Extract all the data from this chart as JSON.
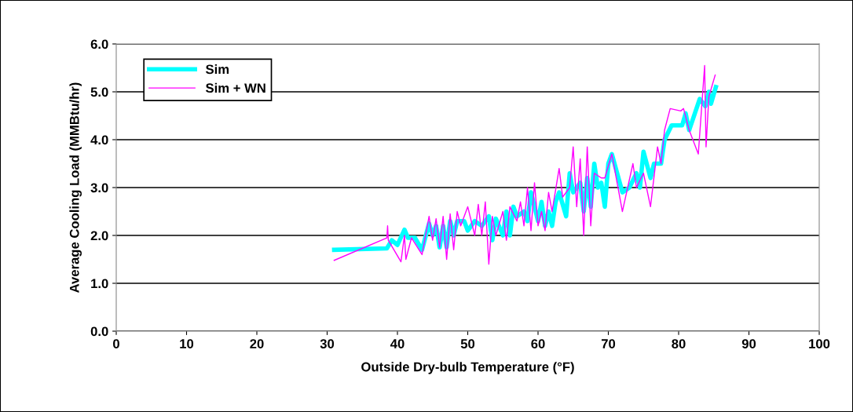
{
  "chart_data": {
    "type": "line",
    "xlabel": "Outside Dry-bulb Temperature (°F)",
    "ylabel": "Average Cooling Load (MMBtu/hr)",
    "xlim": [
      0,
      100
    ],
    "xticks": [
      0,
      10,
      20,
      30,
      40,
      50,
      60,
      70,
      80,
      90,
      100
    ],
    "ylim": [
      0,
      6
    ],
    "yticks": [
      {
        "value": 0,
        "label": "0.0"
      },
      {
        "value": 1,
        "label": "1.0"
      },
      {
        "value": 2,
        "label": "2.0"
      },
      {
        "value": 3,
        "label": "3.0"
      },
      {
        "value": 4,
        "label": "4.0"
      },
      {
        "value": 5,
        "label": "5.0"
      },
      {
        "value": 6,
        "label": "6.0"
      }
    ],
    "grid": "y",
    "legend": "top left",
    "marker": "none",
    "line_style": "solid",
    "series": [
      {
        "name": "Sim",
        "color": "#00ffff",
        "x": [
          31,
          38.5,
          39.2,
          40,
          41,
          41.5,
          42.5,
          43.5,
          44.5,
          45,
          45.5,
          46,
          46.5,
          47,
          47.5,
          48,
          48.5,
          49.5,
          50,
          51,
          52,
          53,
          53.5,
          54,
          55,
          55.5,
          56,
          56.5,
          57,
          58,
          58.5,
          59,
          60,
          60.5,
          61,
          61.5,
          62,
          62.5,
          63,
          64,
          64.5,
          65,
          66,
          66.5,
          67,
          67.5,
          68,
          68.5,
          69,
          69.5,
          70,
          70.5,
          72,
          73,
          74,
          74.5,
          75,
          76,
          76.5,
          77.5,
          78,
          79,
          80.5,
          81,
          81.5,
          83,
          83.8,
          84.3,
          84.6,
          85.3
        ],
        "values": [
          1.7,
          1.73,
          1.9,
          1.8,
          2.12,
          1.95,
          1.95,
          1.7,
          2.25,
          2.0,
          2.2,
          1.75,
          2.2,
          1.75,
          2.3,
          2.0,
          2.3,
          2.3,
          2.1,
          2.3,
          2.2,
          2.4,
          1.9,
          2.35,
          2.0,
          2.5,
          2.0,
          2.6,
          2.4,
          2.5,
          2.3,
          2.9,
          2.3,
          2.7,
          2.2,
          2.5,
          2.2,
          2.7,
          2.9,
          2.4,
          3.3,
          2.9,
          3.1,
          2.5,
          3.2,
          2.6,
          3.5,
          3.0,
          3.1,
          2.6,
          3.5,
          3.7,
          2.9,
          3.0,
          3.3,
          3.0,
          3.75,
          3.2,
          3.5,
          3.5,
          4.0,
          4.3,
          4.3,
          4.55,
          4.2,
          4.85,
          4.7,
          5.0,
          4.75,
          5.1
        ]
      },
      {
        "name": "Sim + WN",
        "color": "#ff00ff",
        "x": [
          31,
          38.5,
          38.6,
          38.7,
          40.5,
          41,
          41.2,
          42,
          43.5,
          44.5,
          45,
          45.5,
          46,
          46.5,
          47,
          47.5,
          48,
          48.5,
          49,
          50,
          51,
          51.5,
          52,
          52.5,
          53,
          53.5,
          54,
          55,
          55.5,
          56,
          57,
          57.5,
          58,
          58.5,
          59,
          59.5,
          60,
          60.5,
          61,
          61.5,
          62,
          63,
          63.5,
          64.5,
          65,
          65.5,
          66,
          66.5,
          67,
          67.5,
          68,
          69,
          69.5,
          70.5,
          72,
          73.5,
          74,
          75,
          76,
          77,
          77.5,
          78,
          78.8,
          80.3,
          80.7,
          81.5,
          82.8,
          83.7,
          83.9,
          84.3,
          85.2
        ],
        "values": [
          1.48,
          1.95,
          2.2,
          1.9,
          1.45,
          2.0,
          1.5,
          1.95,
          1.6,
          2.4,
          1.9,
          2.35,
          1.75,
          2.4,
          1.5,
          2.45,
          1.7,
          2.5,
          2.2,
          2.6,
          2.0,
          2.65,
          2.0,
          2.7,
          1.4,
          2.4,
          2.0,
          2.5,
          1.9,
          2.6,
          2.3,
          2.7,
          2.2,
          3.0,
          2.1,
          3.1,
          2.2,
          2.5,
          2.1,
          2.9,
          2.5,
          3.4,
          2.8,
          3.0,
          3.85,
          2.6,
          3.6,
          2.0,
          3.85,
          2.2,
          3.3,
          3.2,
          3.2,
          3.7,
          2.5,
          3.5,
          3.0,
          3.3,
          2.6,
          3.85,
          3.5,
          4.2,
          4.65,
          4.6,
          4.65,
          4.2,
          3.7,
          5.55,
          3.85,
          4.9,
          5.35
        ]
      }
    ]
  }
}
